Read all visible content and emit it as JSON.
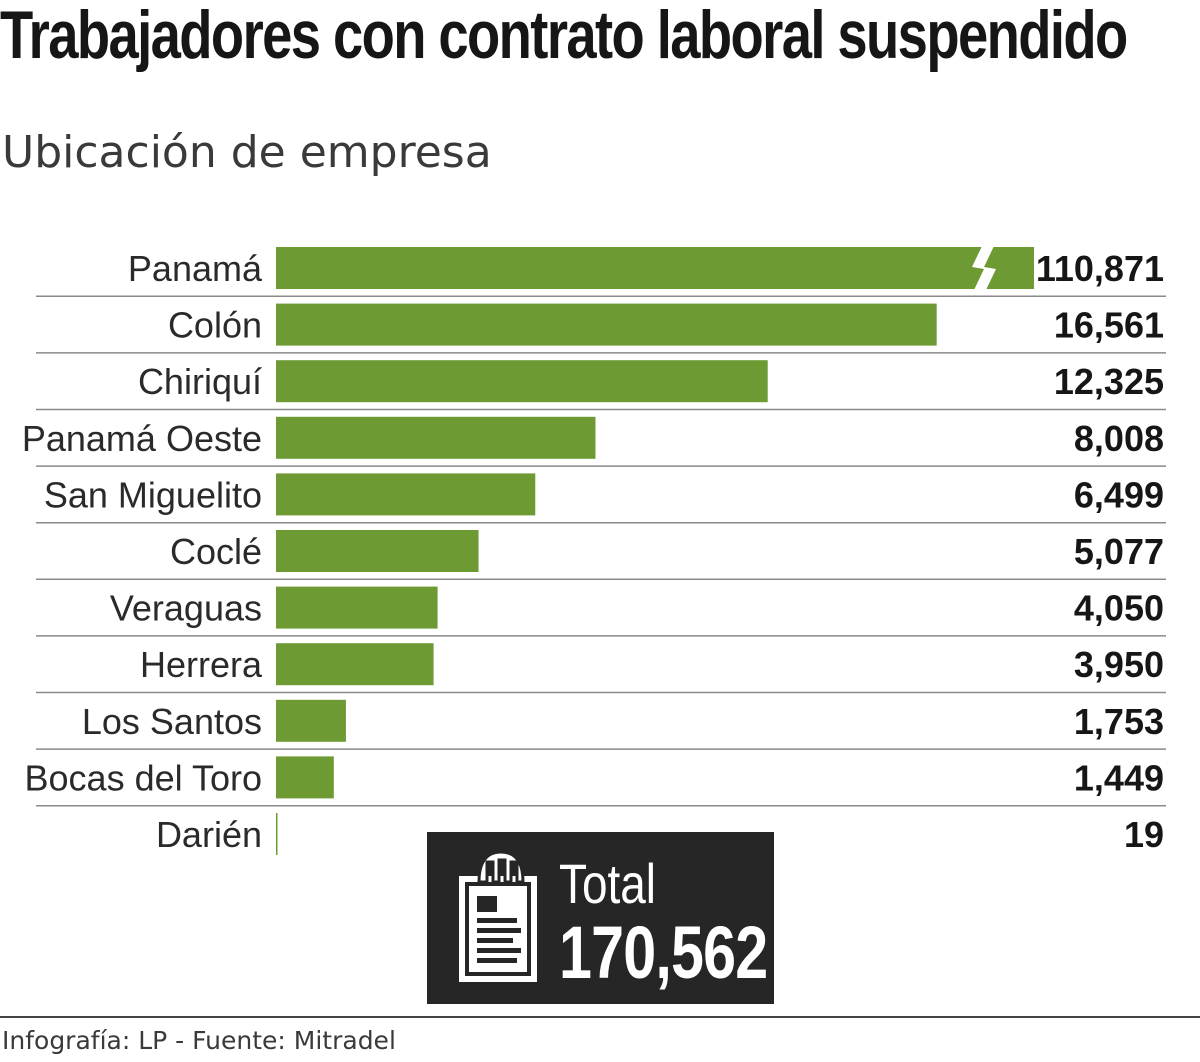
{
  "chart_data": {
    "type": "bar",
    "orientation": "horizontal",
    "title": "Trabajadores con contrato laboral suspendido",
    "subtitle": "Ubicación de empresa",
    "categories": [
      "Panamá",
      "Colón",
      "Chiriquí",
      "Panamá Oeste",
      "San Miguelito",
      "Coclé",
      "Veraguas",
      "Herrera",
      "Los Santos",
      "Bocas del Toro",
      "Darién"
    ],
    "values": [
      110871,
      16561,
      12325,
      8008,
      6499,
      5077,
      4050,
      3950,
      1753,
      1449,
      19
    ],
    "value_labels": [
      "110,871",
      "16,561",
      "12,325",
      "8,008",
      "6,499",
      "5,077",
      "4,050",
      "3,950",
      "1,753",
      "1,449",
      "19"
    ],
    "broken_axis_bars": [
      "Panamá"
    ],
    "xlim": [
      0,
      19000
    ],
    "bar_color": "#6e9a33",
    "rule_color": "#8a8a8a",
    "grid": false,
    "legend": "none"
  },
  "total": {
    "label": "Total",
    "value": "170,562",
    "icon": "clipboard-document-icon"
  },
  "footer": {
    "credit": "Infografía: LP - Fuente: Mitradel"
  }
}
